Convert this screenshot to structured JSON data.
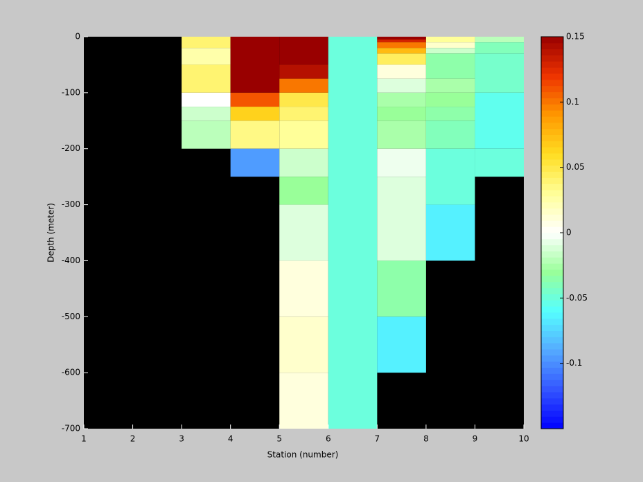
{
  "chart_data": {
    "type": "heatmap",
    "xlabel": "Station (number)",
    "ylabel": "Depth (meter)",
    "xlim": [
      1,
      10
    ],
    "xticks": [
      1,
      2,
      3,
      4,
      5,
      6,
      7,
      8,
      9,
      10
    ],
    "ylim": [
      -700,
      0
    ],
    "yticks": [
      0,
      -100,
      -200,
      -300,
      -400,
      -500,
      -600,
      -700
    ],
    "background": "#000000",
    "clim": [
      -0.15,
      0.15
    ],
    "cticks": [
      0.15,
      0.1,
      0.05,
      0,
      -0.05,
      -0.1
    ],
    "colormap": [
      "#0000ff",
      "#3355ff",
      "#55aaff",
      "#55ffff",
      "#99ff99",
      "#ffffff",
      "#ffff99",
      "#ffdd22",
      "#ff9900",
      "#ee3300",
      "#990000"
    ],
    "cells": [
      {
        "x": [
          3,
          4
        ],
        "y": [
          0,
          -20
        ],
        "value": 0.04
      },
      {
        "x": [
          3,
          4
        ],
        "y": [
          -20,
          -50
        ],
        "value": 0.025
      },
      {
        "x": [
          3,
          4
        ],
        "y": [
          -50,
          -100
        ],
        "value": 0.04
      },
      {
        "x": [
          3,
          4
        ],
        "y": [
          -100,
          -125
        ],
        "value": 0
      },
      {
        "x": [
          3,
          4
        ],
        "y": [
          -125,
          -150
        ],
        "value": -0.015
      },
      {
        "x": [
          3,
          4
        ],
        "y": [
          -150,
          -200
        ],
        "value": -0.02
      },
      {
        "x": [
          4,
          5
        ],
        "y": [
          0,
          -100
        ],
        "value": 0.15
      },
      {
        "x": [
          4,
          5
        ],
        "y": [
          -100,
          -125
        ],
        "value": 0.11
      },
      {
        "x": [
          4,
          5
        ],
        "y": [
          -125,
          -150
        ],
        "value": 0.065
      },
      {
        "x": [
          4,
          5
        ],
        "y": [
          -150,
          -200
        ],
        "value": 0.035
      },
      {
        "x": [
          4,
          5
        ],
        "y": [
          -200,
          -250
        ],
        "value": -0.095
      },
      {
        "x": [
          5,
          6
        ],
        "y": [
          0,
          -50
        ],
        "value": 0.15
      },
      {
        "x": [
          5,
          6
        ],
        "y": [
          -50,
          -75
        ],
        "value": 0.14
      },
      {
        "x": [
          5,
          6
        ],
        "y": [
          -75,
          -100
        ],
        "value": 0.1
      },
      {
        "x": [
          5,
          6
        ],
        "y": [
          -100,
          -125
        ],
        "value": 0.05
      },
      {
        "x": [
          5,
          6
        ],
        "y": [
          -125,
          -150
        ],
        "value": 0.04
      },
      {
        "x": [
          5,
          6
        ],
        "y": [
          -150,
          -200
        ],
        "value": 0.03
      },
      {
        "x": [
          5,
          6
        ],
        "y": [
          -200,
          -250
        ],
        "value": -0.015
      },
      {
        "x": [
          5,
          6
        ],
        "y": [
          -250,
          -300
        ],
        "value": -0.03
      },
      {
        "x": [
          5,
          6
        ],
        "y": [
          -300,
          -400
        ],
        "value": -0.01
      },
      {
        "x": [
          5,
          6
        ],
        "y": [
          -400,
          -500
        ],
        "value": 0.01
      },
      {
        "x": [
          5,
          6
        ],
        "y": [
          -500,
          -600
        ],
        "value": 0.015
      },
      {
        "x": [
          5,
          6
        ],
        "y": [
          -600,
          -700
        ],
        "value": 0.01
      },
      {
        "x": [
          6,
          7
        ],
        "y": [
          0,
          -700
        ],
        "value": -0.05
      },
      {
        "x": [
          7,
          8
        ],
        "y": [
          0,
          -5
        ],
        "value": 0.15
      },
      {
        "x": [
          7,
          8
        ],
        "y": [
          -5,
          -10
        ],
        "value": 0.13
      },
      {
        "x": [
          7,
          8
        ],
        "y": [
          -10,
          -20
        ],
        "value": 0.1
      },
      {
        "x": [
          7,
          8
        ],
        "y": [
          -20,
          -30
        ],
        "value": 0.075
      },
      {
        "x": [
          7,
          8
        ],
        "y": [
          -30,
          -50
        ],
        "value": 0.045
      },
      {
        "x": [
          7,
          8
        ],
        "y": [
          -50,
          -75
        ],
        "value": 0.01
      },
      {
        "x": [
          7,
          8
        ],
        "y": [
          -75,
          -100
        ],
        "value": -0.01
      },
      {
        "x": [
          7,
          8
        ],
        "y": [
          -100,
          -125
        ],
        "value": -0.025
      },
      {
        "x": [
          7,
          8
        ],
        "y": [
          -125,
          -150
        ],
        "value": -0.03
      },
      {
        "x": [
          7,
          8
        ],
        "y": [
          -150,
          -200
        ],
        "value": -0.025
      },
      {
        "x": [
          7,
          8
        ],
        "y": [
          -200,
          -250
        ],
        "value": -0.005
      },
      {
        "x": [
          7,
          8
        ],
        "y": [
          -250,
          -400
        ],
        "value": -0.01
      },
      {
        "x": [
          7,
          8
        ],
        "y": [
          -400,
          -500
        ],
        "value": -0.035
      },
      {
        "x": [
          7,
          8
        ],
        "y": [
          -500,
          -600
        ],
        "value": -0.065
      },
      {
        "x": [
          8,
          9
        ],
        "y": [
          0,
          -10
        ],
        "value": 0.03
      },
      {
        "x": [
          8,
          9
        ],
        "y": [
          -10,
          -20
        ],
        "value": 0.015
      },
      {
        "x": [
          8,
          9
        ],
        "y": [
          -20,
          -30
        ],
        "value": -0.015
      },
      {
        "x": [
          8,
          9
        ],
        "y": [
          -30,
          -75
        ],
        "value": -0.035
      },
      {
        "x": [
          8,
          9
        ],
        "y": [
          -75,
          -100
        ],
        "value": -0.025
      },
      {
        "x": [
          8,
          9
        ],
        "y": [
          -100,
          -125
        ],
        "value": -0.03
      },
      {
        "x": [
          8,
          9
        ],
        "y": [
          -125,
          -150
        ],
        "value": -0.035
      },
      {
        "x": [
          8,
          9
        ],
        "y": [
          -150,
          -200
        ],
        "value": -0.04
      },
      {
        "x": [
          8,
          9
        ],
        "y": [
          -200,
          -300
        ],
        "value": -0.05
      },
      {
        "x": [
          8,
          9
        ],
        "y": [
          -300,
          -400
        ],
        "value": -0.065
      },
      {
        "x": [
          9,
          10
        ],
        "y": [
          0,
          -10
        ],
        "value": -0.02
      },
      {
        "x": [
          9,
          10
        ],
        "y": [
          -10,
          -30
        ],
        "value": -0.04
      },
      {
        "x": [
          9,
          10
        ],
        "y": [
          -30,
          -100
        ],
        "value": -0.045
      },
      {
        "x": [
          9,
          10
        ],
        "y": [
          -100,
          -200
        ],
        "value": -0.055
      },
      {
        "x": [
          9,
          10
        ],
        "y": [
          -200,
          -250
        ],
        "value": -0.05
      }
    ]
  }
}
